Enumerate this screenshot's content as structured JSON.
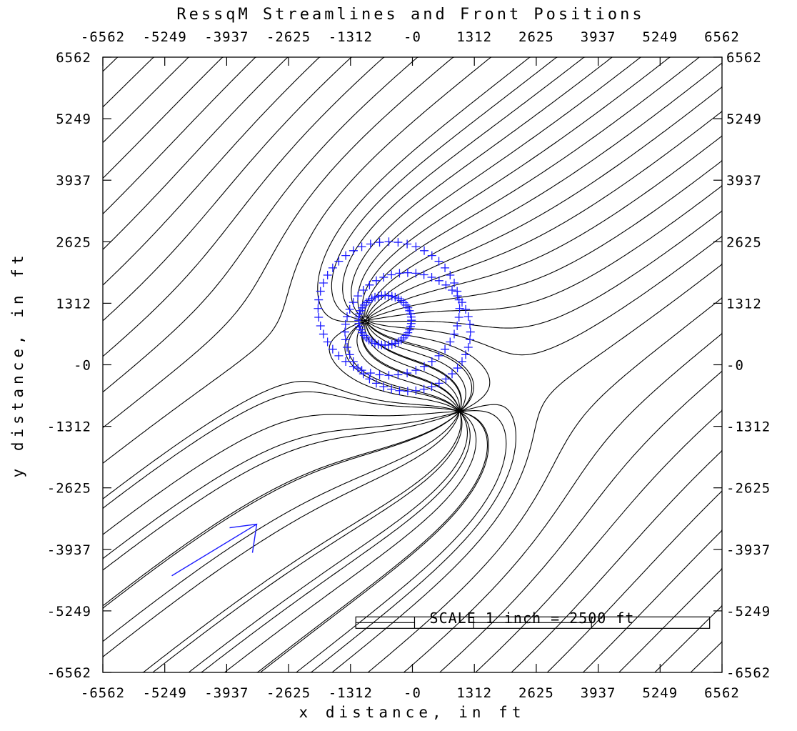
{
  "chart_data": {
    "type": "line",
    "title": "RessqM Streamlines and Front Positions",
    "xlabel": "x distance, in ft",
    "ylabel": "y distance, in ft",
    "xlim": [
      -6562,
      6562
    ],
    "ylim": [
      -6562,
      6562
    ],
    "x_ticks": [
      "-6562",
      "-5249",
      "-3937",
      "-2625",
      "-1312",
      "-0",
      "1312",
      "2625",
      "3937",
      "5249",
      "6562"
    ],
    "y_ticks": [
      "6562",
      "5249",
      "3937",
      "2625",
      "1312",
      "-0",
      "-1312",
      "-2625",
      "-3937",
      "-5249",
      "-6562"
    ],
    "colors": {
      "streamline": "#000000",
      "front": "#1a1aff",
      "flow_arrow": "#1a1aff"
    },
    "injector": [
      -1000,
      950
    ],
    "producer": [
      1000,
      -1000
    ],
    "regional_flow_arrow": {
      "from": [
        -5100,
        -4500
      ],
      "to": [
        -3300,
        -3400
      ]
    },
    "fronts": [
      {
        "name": "",
        "center": [
          -580,
          950
        ],
        "radius": 560
      },
      {
        "name": "",
        "center": [
          -100,
          700
        ],
        "radius": 1330
      },
      {
        "name": "",
        "center": [
          -500,
          1200
        ],
        "radius": 1500
      }
    ],
    "scale_bar": {
      "label": "SCALE 1 inch = 2500 ft",
      "x_from": -1200,
      "x_to": 6300,
      "y": -5500
    },
    "grid": false,
    "legend": "none"
  }
}
